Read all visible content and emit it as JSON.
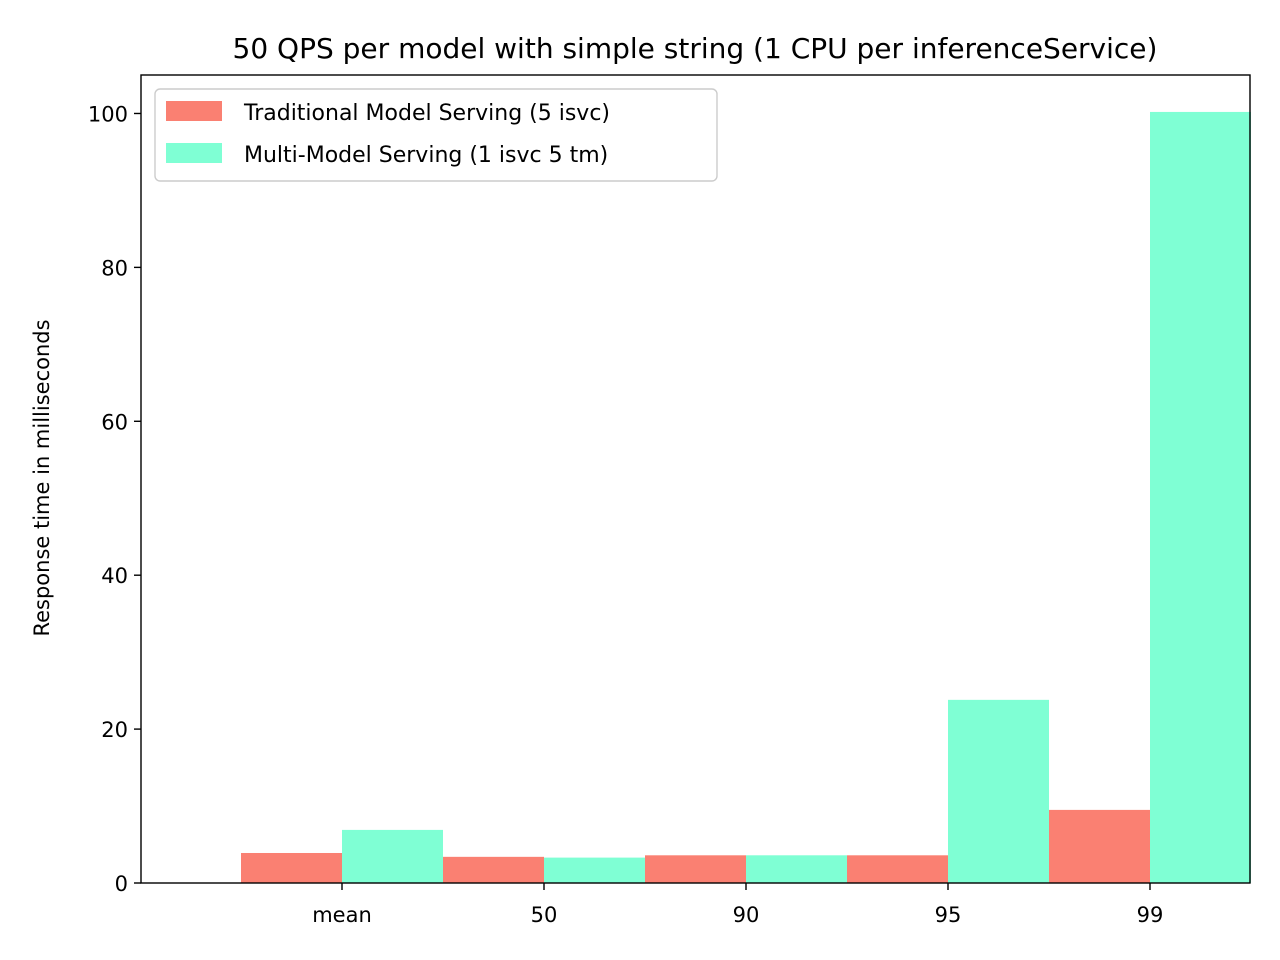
{
  "chart_data": {
    "type": "bar",
    "title": "50 QPS per model with simple string (1 CPU per inferenceService)",
    "xlabel": "",
    "ylabel": "Response time in milliseconds",
    "categories": [
      "mean",
      "50",
      "90",
      "95",
      "99"
    ],
    "ylim": [
      0,
      105
    ],
    "yticks": [
      0,
      20,
      40,
      60,
      80,
      100
    ],
    "grid": false,
    "legend_position": "top-left",
    "series": [
      {
        "name": "Traditional Model Serving (5 isvc)",
        "color": "#fa8072",
        "values": [
          3.9,
          3.4,
          3.6,
          3.6,
          9.5
        ]
      },
      {
        "name": "Multi-Model Serving (1 isvc 5 tm)",
        "color": "#7fffd4",
        "values": [
          6.9,
          3.3,
          3.6,
          23.8,
          100.2
        ]
      }
    ]
  }
}
